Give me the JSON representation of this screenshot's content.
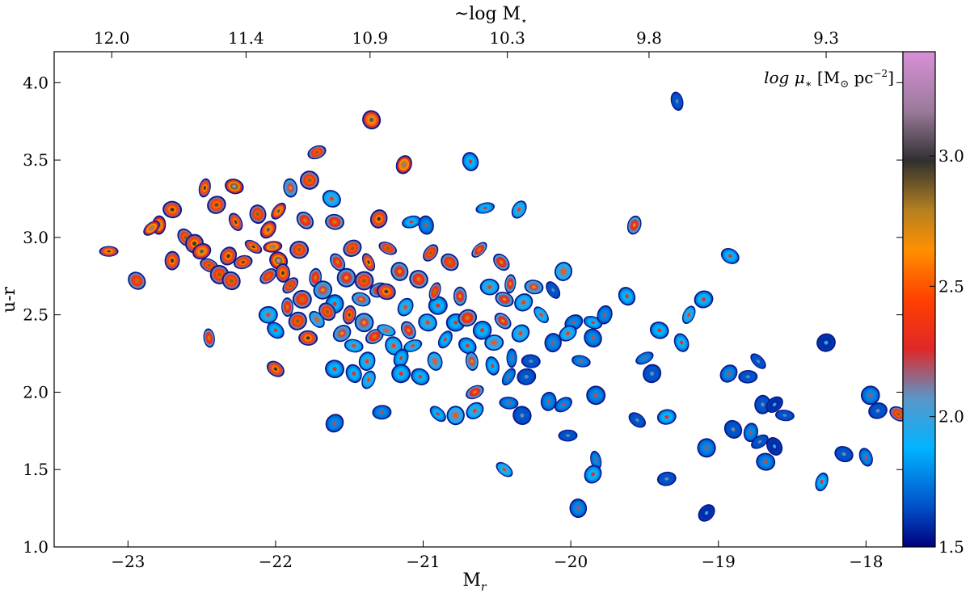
{
  "chart_data": {
    "type": "scatter",
    "title": "",
    "xlabel_base": "M",
    "xlabel_sub": "r",
    "ylabel": "u-r",
    "top_axis_label_prefix": "~log M",
    "top_axis_label_sub": "⋆",
    "xlim": [
      -23.5,
      -17.75
    ],
    "ylim": [
      1.0,
      4.2
    ],
    "x_ticks": [
      -23,
      -22,
      -21,
      -20,
      -19,
      -18
    ],
    "x_tick_labels": [
      "−23",
      "−22",
      "−21",
      "−20",
      "−19",
      "−18"
    ],
    "y_ticks": [
      1.0,
      1.5,
      2.0,
      2.5,
      3.0,
      3.5,
      4.0
    ],
    "y_tick_labels": [
      "1.0",
      "1.5",
      "2.0",
      "2.5",
      "3.0",
      "3.5",
      "4.0"
    ],
    "top_ticks_at_x": [
      -23.11,
      -22.2,
      -21.36,
      -20.43,
      -19.47,
      -18.27
    ],
    "top_tick_labels": [
      "12.0",
      "11.4",
      "10.9",
      "10.3",
      "9.8",
      "9.3"
    ],
    "colorbar": {
      "label_prefix": "log μ",
      "label_sub": "∗",
      "label_units": " [M",
      "label_units_sub": "⊙",
      "label_units_tail": " pc",
      "label_units_sup": "−2",
      "label_close": "]",
      "range": [
        1.5,
        3.4
      ],
      "ticks": [
        1.5,
        2.0,
        2.5,
        3.0
      ],
      "tick_labels": [
        "1.5",
        "2.0",
        "2.5",
        "3.0"
      ],
      "colors": [
        "#00007f",
        "#0050c8",
        "#00b4ff",
        "#5a96c8",
        "#e02828",
        "#ff4000",
        "#ff9000",
        "#b48020",
        "#303030",
        "#9a7a9a",
        "#d890d8"
      ]
    },
    "points": [
      [
        -23.13,
        2.91,
        2.65
      ],
      [
        -22.94,
        2.72,
        2.45
      ],
      [
        -22.79,
        3.08,
        2.75
      ],
      [
        -22.84,
        3.06,
        2.8
      ],
      [
        -22.7,
        3.18,
        2.6
      ],
      [
        -22.61,
        3.0,
        2.5
      ],
      [
        -22.48,
        3.32,
        2.6
      ],
      [
        -22.4,
        3.21,
        2.55
      ],
      [
        -22.28,
        3.33,
        2.9
      ],
      [
        -22.27,
        3.1,
        2.6
      ],
      [
        -22.55,
        2.96,
        2.6
      ],
      [
        -22.5,
        2.91,
        2.7
      ],
      [
        -22.45,
        2.82,
        2.5
      ],
      [
        -22.38,
        2.76,
        2.5
      ],
      [
        -22.32,
        2.88,
        2.6
      ],
      [
        -22.22,
        2.84,
        2.55
      ],
      [
        -22.15,
        2.94,
        2.6
      ],
      [
        -22.12,
        3.15,
        2.5
      ],
      [
        -22.05,
        3.05,
        2.7
      ],
      [
        -22.02,
        2.94,
        2.8
      ],
      [
        -21.98,
        2.85,
        2.9
      ],
      [
        -21.95,
        2.77,
        2.6
      ],
      [
        -21.9,
        2.69,
        2.5
      ],
      [
        -21.84,
        2.92,
        2.5
      ],
      [
        -21.8,
        3.11,
        2.4
      ],
      [
        -21.73,
        2.74,
        2.4
      ],
      [
        -21.68,
        2.66,
        2.2
      ],
      [
        -21.6,
        3.1,
        2.4
      ],
      [
        -21.58,
        2.84,
        2.4
      ],
      [
        -21.52,
        2.74,
        2.3
      ],
      [
        -21.48,
        2.93,
        2.5
      ],
      [
        -21.42,
        2.6,
        2.2
      ],
      [
        -21.37,
        2.84,
        2.6
      ],
      [
        -21.3,
        3.12,
        2.6
      ],
      [
        -21.3,
        2.66,
        2.3
      ],
      [
        -21.24,
        2.93,
        2.5
      ],
      [
        -21.16,
        2.78,
        2.3
      ],
      [
        -21.12,
        2.55,
        2.0
      ],
      [
        -21.08,
        3.1,
        1.9
      ],
      [
        -21.03,
        2.73,
        2.4
      ],
      [
        -20.98,
        3.08,
        1.8
      ],
      [
        -20.95,
        2.9,
        2.5
      ],
      [
        -20.9,
        2.56,
        1.9
      ],
      [
        -20.82,
        2.84,
        2.45
      ],
      [
        -20.75,
        2.62,
        2.3
      ],
      [
        -20.62,
        2.92,
        2.4
      ],
      [
        -20.55,
        2.68,
        2.0
      ],
      [
        -20.47,
        2.84,
        2.35
      ],
      [
        -20.41,
        2.7,
        2.3
      ],
      [
        -20.32,
        2.58,
        2.0
      ],
      [
        -20.25,
        2.68,
        2.2
      ],
      [
        -20.12,
        2.66,
        1.7
      ],
      [
        -20.05,
        2.78,
        2.1
      ],
      [
        -19.98,
        2.45,
        1.8
      ],
      [
        -19.85,
        2.45,
        1.9
      ],
      [
        -21.35,
        3.76,
        2.7
      ],
      [
        -21.13,
        3.47,
        2.8
      ],
      [
        -21.72,
        3.55,
        2.5
      ],
      [
        -21.77,
        3.37,
        2.5
      ],
      [
        -20.68,
        3.49,
        1.9
      ],
      [
        -20.35,
        3.18,
        2.0
      ],
      [
        -20.58,
        3.19,
        1.9
      ],
      [
        -21.62,
        3.25,
        2.0
      ],
      [
        -21.9,
        3.32,
        2.2
      ],
      [
        -21.98,
        3.17,
        2.7
      ],
      [
        -22.05,
        2.5,
        2.0
      ],
      [
        -22.0,
        2.4,
        1.9
      ],
      [
        -21.92,
        2.55,
        2.4
      ],
      [
        -21.85,
        2.46,
        2.5
      ],
      [
        -21.78,
        2.35,
        2.6
      ],
      [
        -21.72,
        2.47,
        2.1
      ],
      [
        -21.6,
        2.57,
        1.9
      ],
      [
        -21.55,
        2.38,
        2.2
      ],
      [
        -21.47,
        2.3,
        2.0
      ],
      [
        -21.4,
        2.45,
        2.2
      ],
      [
        -21.38,
        2.2,
        2.0
      ],
      [
        -21.33,
        2.36,
        2.4
      ],
      [
        -21.25,
        2.4,
        2.1
      ],
      [
        -21.2,
        2.3,
        2.0
      ],
      [
        -21.15,
        2.22,
        1.9
      ],
      [
        -21.07,
        2.3,
        2.0
      ],
      [
        -20.97,
        2.45,
        2.0
      ],
      [
        -20.92,
        2.2,
        2.1
      ],
      [
        -20.85,
        2.34,
        1.9
      ],
      [
        -20.78,
        2.45,
        1.9
      ],
      [
        -20.7,
        2.3,
        1.9
      ],
      [
        -20.67,
        2.2,
        2.2
      ],
      [
        -20.6,
        2.4,
        1.9
      ],
      [
        -20.52,
        2.32,
        2.1
      ],
      [
        -20.46,
        2.46,
        2.3
      ],
      [
        -20.4,
        2.22,
        1.8
      ],
      [
        -20.34,
        2.38,
        2.0
      ],
      [
        -20.27,
        2.2,
        1.7
      ],
      [
        -20.2,
        2.5,
        2.0
      ],
      [
        -20.12,
        2.32,
        1.8
      ],
      [
        -20.02,
        2.38,
        2.0
      ],
      [
        -19.93,
        2.2,
        1.8
      ],
      [
        -19.85,
        2.35,
        1.8
      ],
      [
        -19.77,
        2.5,
        1.8
      ],
      [
        -20.65,
        2.0,
        2.35
      ],
      [
        -21.6,
        2.15,
        1.9
      ],
      [
        -21.47,
        2.12,
        1.9
      ],
      [
        -21.37,
        2.08,
        2.0
      ],
      [
        -21.15,
        2.12,
        1.9
      ],
      [
        -21.02,
        2.1,
        1.9
      ],
      [
        -20.53,
        2.17,
        1.9
      ],
      [
        -20.42,
        2.1,
        1.8
      ],
      [
        -20.3,
        2.1,
        1.7
      ],
      [
        -22.0,
        2.15,
        2.6
      ],
      [
        -22.45,
        2.35,
        2.4
      ],
      [
        -21.6,
        1.8,
        1.8
      ],
      [
        -21.28,
        1.87,
        1.8
      ],
      [
        -20.9,
        1.86,
        1.9
      ],
      [
        -20.78,
        1.85,
        2.1
      ],
      [
        -20.65,
        1.88,
        2.0
      ],
      [
        -20.42,
        1.93,
        1.8
      ],
      [
        -20.33,
        1.85,
        1.7
      ],
      [
        -20.15,
        1.94,
        1.8
      ],
      [
        -20.05,
        1.92,
        1.8
      ],
      [
        -19.83,
        1.98,
        1.8
      ],
      [
        -19.62,
        2.62,
        1.9
      ],
      [
        -19.57,
        3.08,
        2.3
      ],
      [
        -19.5,
        2.22,
        1.8
      ],
      [
        -19.4,
        2.4,
        1.9
      ],
      [
        -19.25,
        2.32,
        1.9
      ],
      [
        -19.2,
        2.5,
        2.0
      ],
      [
        -19.1,
        2.6,
        1.9
      ],
      [
        -18.92,
        2.88,
        1.9
      ],
      [
        -19.28,
        3.88,
        1.7
      ],
      [
        -19.45,
        2.12,
        1.7
      ],
      [
        -19.35,
        1.84,
        1.9
      ],
      [
        -19.55,
        1.82,
        1.7
      ],
      [
        -19.08,
        1.64,
        1.8
      ],
      [
        -18.93,
        2.12,
        1.8
      ],
      [
        -18.8,
        2.1,
        1.7
      ],
      [
        -18.73,
        2.2,
        1.7
      ],
      [
        -18.7,
        1.92,
        1.7
      ],
      [
        -18.62,
        1.92,
        1.6
      ],
      [
        -18.55,
        1.85,
        1.7
      ],
      [
        -18.9,
        1.76,
        1.7
      ],
      [
        -18.78,
        1.74,
        1.8
      ],
      [
        -18.72,
        1.68,
        1.7
      ],
      [
        -18.68,
        1.55,
        1.8
      ],
      [
        -18.62,
        1.65,
        1.6
      ],
      [
        -18.3,
        1.42,
        1.9
      ],
      [
        -18.27,
        2.32,
        1.6
      ],
      [
        -18.15,
        1.6,
        1.7
      ],
      [
        -18.0,
        1.58,
        1.8
      ],
      [
        -17.97,
        1.98,
        1.8
      ],
      [
        -17.92,
        1.88,
        1.7
      ],
      [
        -17.78,
        1.86,
        2.5
      ],
      [
        -19.83,
        1.56,
        1.8
      ],
      [
        -19.85,
        1.47,
        1.9
      ],
      [
        -19.35,
        1.44,
        1.7
      ],
      [
        -20.45,
        1.5,
        2.0
      ],
      [
        -19.95,
        1.25,
        1.8
      ],
      [
        -19.08,
        1.22,
        1.6
      ],
      [
        -20.02,
        1.72,
        1.7
      ],
      [
        -22.3,
        2.72,
        2.5
      ],
      [
        -22.7,
        2.85,
        2.6
      ],
      [
        -22.05,
        2.75,
        2.45
      ],
      [
        -21.82,
        2.6,
        2.45
      ],
      [
        -21.65,
        2.52,
        2.5
      ],
      [
        -21.5,
        2.5,
        2.55
      ],
      [
        -21.4,
        2.72,
        2.5
      ],
      [
        -21.25,
        2.65,
        2.6
      ],
      [
        -21.1,
        2.4,
        2.3
      ],
      [
        -20.92,
        2.65,
        2.45
      ],
      [
        -20.7,
        2.48,
        2.4
      ],
      [
        -20.45,
        2.6,
        2.3
      ]
    ]
  }
}
